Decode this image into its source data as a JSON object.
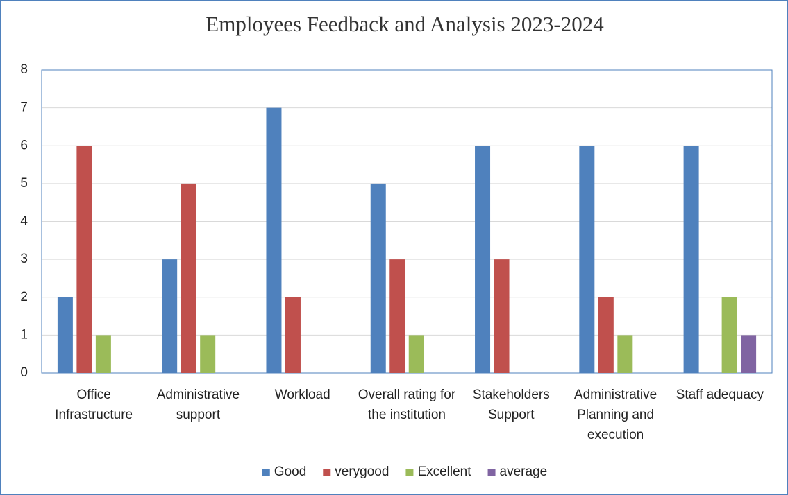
{
  "chart_data": {
    "type": "bar",
    "title": "Employees Feedback and Analysis 2023-2024",
    "categories": [
      "Office Infrastructure",
      "Administrative support",
      "Workload",
      "Overall rating for the institution",
      "Stakeholders Support",
      "Administrative Planning and execution",
      "Staff adequacy"
    ],
    "series": [
      {
        "name": "Good",
        "color": "#4f81bd",
        "values": [
          2,
          3,
          7,
          5,
          6,
          6,
          6
        ]
      },
      {
        "name": "verygood",
        "color": "#c0504d",
        "values": [
          6,
          5,
          2,
          3,
          3,
          2,
          0
        ]
      },
      {
        "name": "Excellent",
        "color": "#9bbb59",
        "values": [
          1,
          1,
          0,
          1,
          0,
          1,
          2
        ]
      },
      {
        "name": "average",
        "color": "#8064a2",
        "values": [
          0,
          0,
          0,
          0,
          0,
          0,
          1
        ]
      }
    ],
    "ylim": [
      0,
      8
    ],
    "yticks": [
      0,
      1,
      2,
      3,
      4,
      5,
      6,
      7,
      8
    ],
    "grid": true,
    "legend": "bottom"
  }
}
